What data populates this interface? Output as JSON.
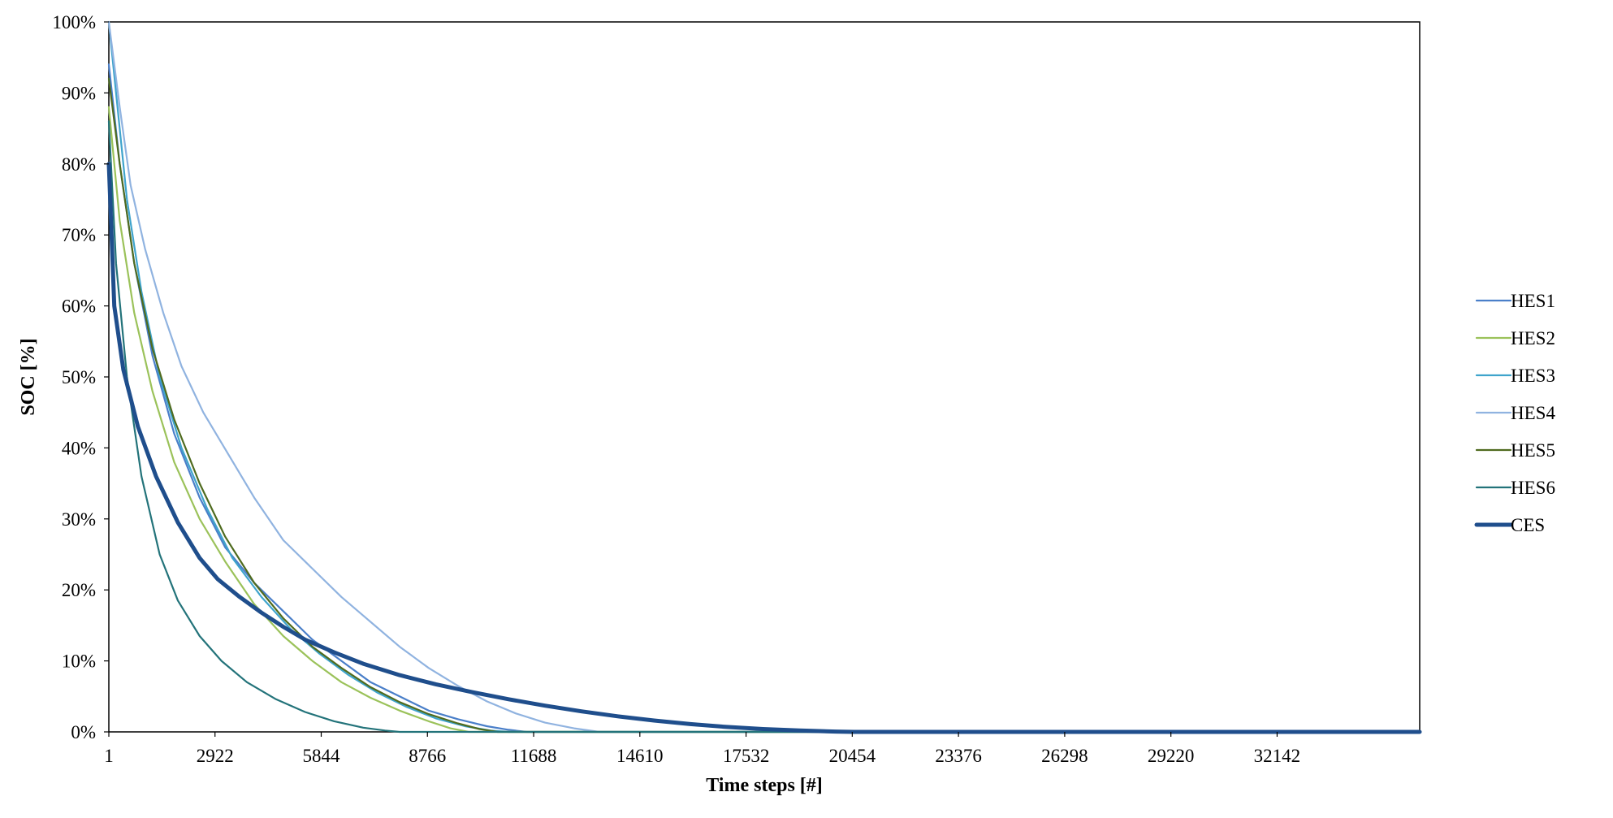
{
  "chart_data": {
    "type": "line",
    "title": "",
    "xlabel": "Time steps [#]",
    "ylabel": "SOC [%]",
    "xlim": [
      1,
      36065
    ],
    "ylim": [
      0,
      100
    ],
    "x_ticks": [
      1,
      2922,
      5844,
      8766,
      11688,
      14610,
      17532,
      20454,
      23376,
      26298,
      29220,
      32142
    ],
    "y_ticks": [
      0,
      10,
      20,
      30,
      40,
      50,
      60,
      70,
      80,
      90,
      100
    ],
    "y_tick_suffix": "%",
    "grid": false,
    "legend_position": "right",
    "series": [
      {
        "name": "HES1",
        "color": "#4a7fc9",
        "width": 2.2,
        "points": [
          [
            1,
            94
          ],
          [
            300,
            80
          ],
          [
            700,
            66
          ],
          [
            1200,
            53
          ],
          [
            1800,
            42
          ],
          [
            2500,
            33
          ],
          [
            3200,
            26
          ],
          [
            4000,
            21
          ],
          [
            4800,
            17
          ],
          [
            5600,
            13
          ],
          [
            6400,
            10
          ],
          [
            7200,
            7
          ],
          [
            8000,
            5
          ],
          [
            8800,
            3
          ],
          [
            9600,
            1.8
          ],
          [
            10400,
            0.8
          ],
          [
            11000,
            0.3
          ],
          [
            11500,
            0
          ],
          [
            36065,
            0
          ]
        ]
      },
      {
        "name": "HES2",
        "color": "#9bc25a",
        "width": 2.2,
        "points": [
          [
            1,
            88
          ],
          [
            300,
            72
          ],
          [
            700,
            59
          ],
          [
            1200,
            48
          ],
          [
            1800,
            38
          ],
          [
            2500,
            30
          ],
          [
            3200,
            24
          ],
          [
            4000,
            18
          ],
          [
            4800,
            13.5
          ],
          [
            5600,
            10
          ],
          [
            6400,
            7
          ],
          [
            7200,
            4.8
          ],
          [
            8000,
            3
          ],
          [
            8800,
            1.5
          ],
          [
            9400,
            0.5
          ],
          [
            9900,
            0
          ],
          [
            36065,
            0
          ]
        ]
      },
      {
        "name": "HES3",
        "color": "#3fa4cc",
        "width": 2.2,
        "points": [
          [
            1,
            100
          ],
          [
            200,
            90
          ],
          [
            500,
            75
          ],
          [
            900,
            62
          ],
          [
            1400,
            50
          ],
          [
            2000,
            40
          ],
          [
            2700,
            31.5
          ],
          [
            3400,
            24.5
          ],
          [
            4200,
            19
          ],
          [
            5000,
            14.5
          ],
          [
            5800,
            11
          ],
          [
            6600,
            8
          ],
          [
            7400,
            5.5
          ],
          [
            8200,
            3.5
          ],
          [
            9000,
            1.9
          ],
          [
            9800,
            0.8
          ],
          [
            10500,
            0.2
          ],
          [
            11000,
            0
          ],
          [
            36065,
            0
          ]
        ]
      },
      {
        "name": "HES4",
        "color": "#90b3e0",
        "width": 2.2,
        "points": [
          [
            1,
            100
          ],
          [
            300,
            88
          ],
          [
            600,
            77
          ],
          [
            1000,
            68
          ],
          [
            1500,
            59
          ],
          [
            2000,
            51.5
          ],
          [
            2600,
            45
          ],
          [
            3300,
            39
          ],
          [
            4000,
            33
          ],
          [
            4800,
            27
          ],
          [
            5600,
            23
          ],
          [
            6400,
            19
          ],
          [
            7200,
            15.5
          ],
          [
            8000,
            12
          ],
          [
            8800,
            9
          ],
          [
            9600,
            6.5
          ],
          [
            10400,
            4.3
          ],
          [
            11200,
            2.6
          ],
          [
            12000,
            1.3
          ],
          [
            12800,
            0.5
          ],
          [
            13500,
            0
          ],
          [
            36065,
            0
          ]
        ]
      },
      {
        "name": "HES5",
        "color": "#4f6b1f",
        "width": 2.2,
        "points": [
          [
            1,
            92
          ],
          [
            300,
            80
          ],
          [
            700,
            66
          ],
          [
            1200,
            54
          ],
          [
            1800,
            44
          ],
          [
            2500,
            35
          ],
          [
            3200,
            27.5
          ],
          [
            4000,
            21
          ],
          [
            4800,
            16
          ],
          [
            5600,
            12
          ],
          [
            6400,
            9
          ],
          [
            7200,
            6.3
          ],
          [
            8000,
            4.2
          ],
          [
            8800,
            2.5
          ],
          [
            9600,
            1.2
          ],
          [
            10200,
            0.4
          ],
          [
            10700,
            0
          ],
          [
            36065,
            0
          ]
        ]
      },
      {
        "name": "HES6",
        "color": "#23737a",
        "width": 2.2,
        "points": [
          [
            1,
            86
          ],
          [
            200,
            66
          ],
          [
            500,
            50
          ],
          [
            900,
            36
          ],
          [
            1400,
            25
          ],
          [
            1900,
            18.5
          ],
          [
            2500,
            13.5
          ],
          [
            3100,
            10
          ],
          [
            3800,
            7
          ],
          [
            4600,
            4.6
          ],
          [
            5400,
            2.8
          ],
          [
            6200,
            1.5
          ],
          [
            7000,
            0.6
          ],
          [
            7600,
            0.2
          ],
          [
            8000,
            0
          ],
          [
            36065,
            0
          ]
        ]
      },
      {
        "name": "CES",
        "color": "#1f4e8c",
        "width": 5,
        "points": [
          [
            1,
            80
          ],
          [
            150,
            60
          ],
          [
            400,
            51
          ],
          [
            800,
            43
          ],
          [
            1300,
            36
          ],
          [
            1900,
            29.5
          ],
          [
            2500,
            24.5
          ],
          [
            3000,
            21.5
          ],
          [
            3600,
            19
          ],
          [
            4200,
            16.8
          ],
          [
            4800,
            14.8
          ],
          [
            5400,
            13
          ],
          [
            6200,
            11.2
          ],
          [
            7000,
            9.6
          ],
          [
            8000,
            8
          ],
          [
            9000,
            6.7
          ],
          [
            10000,
            5.6
          ],
          [
            11000,
            4.6
          ],
          [
            12000,
            3.7
          ],
          [
            13000,
            2.9
          ],
          [
            14000,
            2.2
          ],
          [
            15000,
            1.6
          ],
          [
            16000,
            1.1
          ],
          [
            17000,
            0.7
          ],
          [
            18000,
            0.4
          ],
          [
            19000,
            0.2
          ],
          [
            20000,
            0.05
          ],
          [
            20500,
            0
          ],
          [
            36065,
            0
          ]
        ]
      }
    ]
  }
}
